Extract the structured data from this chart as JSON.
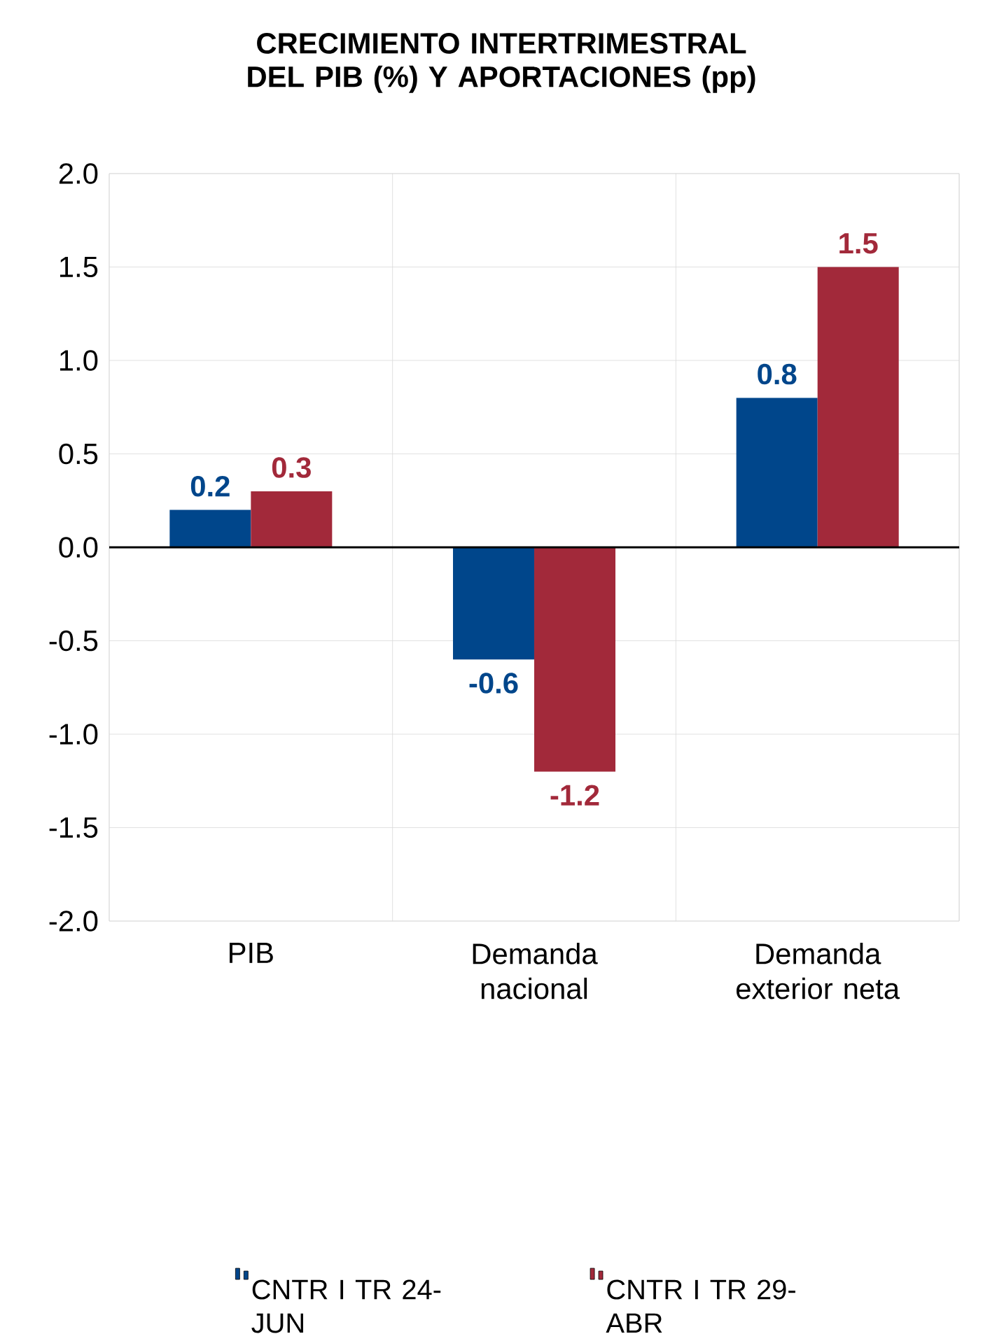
{
  "chart_data": {
    "type": "bar",
    "title": "CRECIMIENTO INTERTRIMESTRAL DEL PIB (%) Y APORTACIONES (pp)",
    "categories": [
      "PIB",
      "Demanda nacional",
      "Demanda exterior neta"
    ],
    "series": [
      {
        "name": "CNTR I TR 24-JUN",
        "color": "#00468b",
        "values": [
          0.2,
          -0.6,
          0.8
        ]
      },
      {
        "name": "CNTR I TR 29-ABR",
        "color": "#a2293a",
        "values": [
          0.3,
          -1.2,
          1.5
        ]
      }
    ],
    "ylim": [
      -2,
      2
    ],
    "yticks": [
      {
        "value": -2,
        "label": "-2.0"
      },
      {
        "value": -1.5,
        "label": "-1.5"
      },
      {
        "value": -1,
        "label": "-1.0"
      },
      {
        "value": -0.5,
        "label": "-0.5"
      },
      {
        "value": 0,
        "label": "0.0"
      },
      {
        "value": 0.5,
        "label": "0.5"
      },
      {
        "value": 1,
        "label": "1.0"
      },
      {
        "value": 1.5,
        "label": "1.5"
      },
      {
        "value": 2,
        "label": "2.0"
      }
    ],
    "grid": true,
    "legend": "bottom",
    "data_labels": true
  }
}
